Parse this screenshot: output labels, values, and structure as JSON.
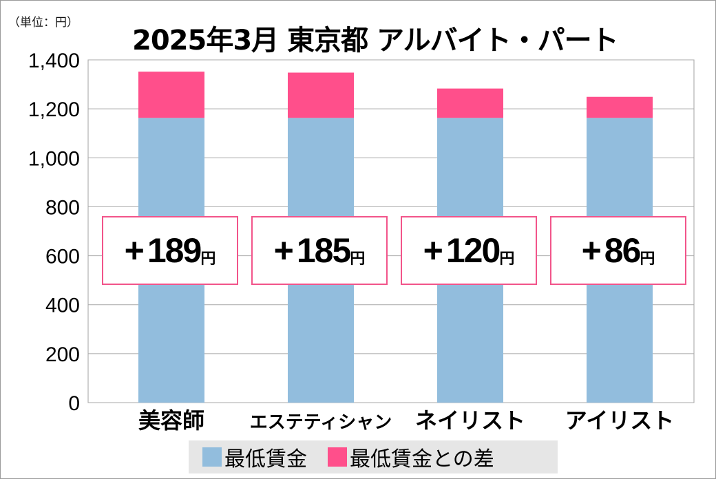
{
  "chart_data": {
    "type": "bar",
    "stacked": true,
    "title": "2025年3月 東京都 アルバイト・パート",
    "unit_label": "（単位：円）",
    "categories": [
      "美容師",
      "エステティシャン",
      "ネイリスト",
      "アイリスト"
    ],
    "series": [
      {
        "name": "最低賃金",
        "values": [
          1163,
          1163,
          1163,
          1163
        ],
        "color": "#92bddd"
      },
      {
        "name": "最低賃金との差",
        "values": [
          189,
          185,
          120,
          86
        ],
        "color": "#ff4f8b"
      }
    ],
    "annotations": [
      {
        "sign": "+",
        "value": "189",
        "unit": "円"
      },
      {
        "sign": "+",
        "value": "185",
        "unit": "円"
      },
      {
        "sign": "+",
        "value": "120",
        "unit": "円"
      },
      {
        "sign": "+",
        "value": "86",
        "unit": "円"
      }
    ],
    "ylim": [
      0,
      1400
    ],
    "yticks": [
      0,
      200,
      400,
      600,
      800,
      1000,
      1200,
      1400
    ],
    "ytick_labels": [
      "0",
      "200",
      "400",
      "600",
      "800",
      "1,000",
      "1,200",
      "1,400"
    ],
    "grid": true,
    "legend_position": "bottom",
    "annotation_border_color": "#f2548a"
  }
}
